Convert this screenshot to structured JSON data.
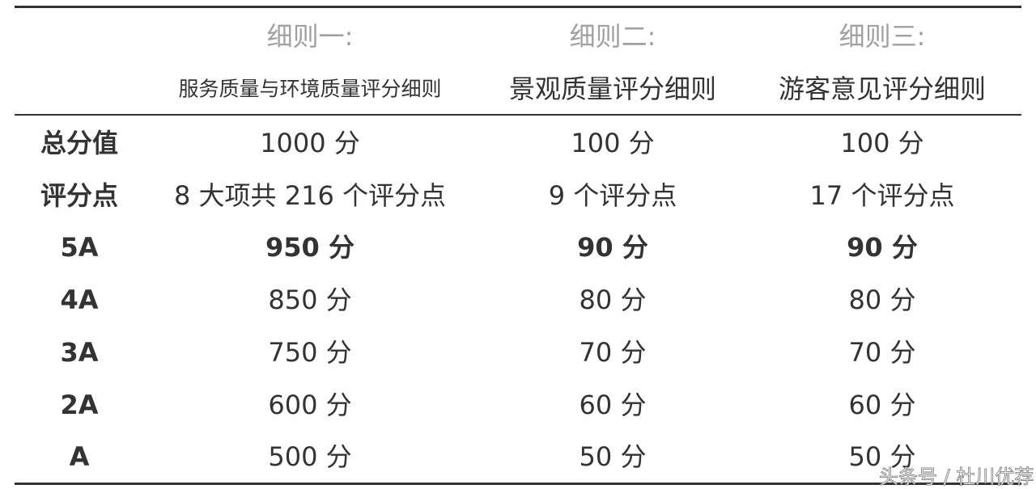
{
  "header": {
    "titles": [
      "细则一:",
      "细则二:",
      "细则三:"
    ],
    "subtitles": [
      "服务质量与环境质量评分细则",
      "景观质量评分细则",
      "游客意见评分细则"
    ]
  },
  "rows": [
    {
      "label": "总分值",
      "values": [
        "1000 分",
        "100 分",
        "100 分"
      ],
      "bold": false
    },
    {
      "label": "评分点",
      "values": [
        "8 大项共 216 个评分点",
        "9 个评分点",
        "17 个评分点"
      ],
      "bold": false
    },
    {
      "label": "5A",
      "values": [
        "950 分",
        "90 分",
        "90 分"
      ],
      "bold": true
    },
    {
      "label": "4A",
      "values": [
        "850 分",
        "80 分",
        "80 分"
      ],
      "bold": false
    },
    {
      "label": "3A",
      "values": [
        "750 分",
        "70 分",
        "70 分"
      ],
      "bold": false
    },
    {
      "label": "2A",
      "values": [
        "600 分",
        "60 分",
        "60 分"
      ],
      "bold": false
    },
    {
      "label": "A",
      "values": [
        "500 分",
        "50 分",
        "50 分"
      ],
      "bold": false
    }
  ],
  "watermark": "头条号 / 杜川优荐"
}
